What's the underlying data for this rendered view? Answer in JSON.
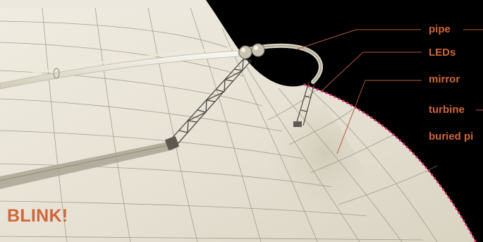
{
  "labels": {
    "pipe": "pipe",
    "leds": "LEDs",
    "mirror": "mirror",
    "turbine": "turbine",
    "buried_pipe": "buried pi"
  },
  "headline": "BLINK!",
  "colors": {
    "label": "#d0663a",
    "leader_line": "#b2573a",
    "dish_surface": "#e8e3d6",
    "background": "#000000",
    "dish_rim_dots": "#e0286a"
  }
}
